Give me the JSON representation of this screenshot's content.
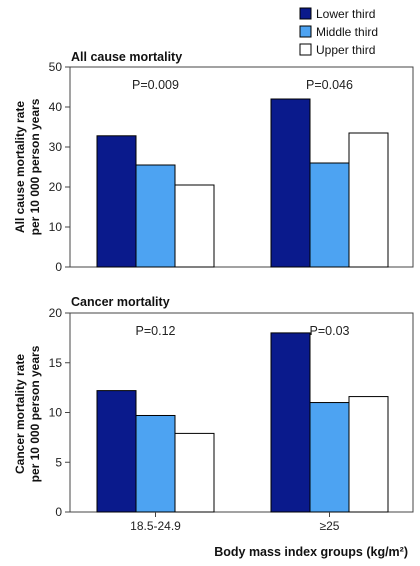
{
  "chart_data": {
    "type": "bar",
    "legend": {
      "placement": "top-right",
      "entries": [
        {
          "name": "Lower third",
          "color": "#0a1a8c"
        },
        {
          "name": "Middle third",
          "color": "#4da3f2"
        },
        {
          "name": "Upper third",
          "color": "#ffffff"
        }
      ]
    },
    "xlabel": "Body mass index groups (kg/m²)",
    "categories": [
      "18.5-24.9",
      "≥25"
    ],
    "panels": [
      {
        "title": "All cause mortality",
        "ylabel_lines": [
          "All cause mortality rate",
          "per 10 000 person years"
        ],
        "ylim": [
          0,
          50
        ],
        "yticks": [
          "0",
          "10",
          "20",
          "30",
          "40",
          "50"
        ],
        "annotations": [
          "P=0.009",
          "P=0.046"
        ],
        "series": [
          {
            "name": "Lower third",
            "values": [
              32.8,
              42.0
            ]
          },
          {
            "name": "Middle third",
            "values": [
              25.5,
              26.0
            ]
          },
          {
            "name": "Upper third",
            "values": [
              20.5,
              33.5
            ]
          }
        ]
      },
      {
        "title": "Cancer mortality",
        "ylabel_lines": [
          "Cancer mortality rate",
          "per 10 000 person years"
        ],
        "ylim": [
          0,
          20
        ],
        "yticks": [
          "0",
          "5",
          "10",
          "15",
          "20"
        ],
        "annotations": [
          "P=0.12",
          "P=0.03"
        ],
        "series": [
          {
            "name": "Lower third",
            "values": [
              12.2,
              18.0
            ]
          },
          {
            "name": "Middle third",
            "values": [
              9.7,
              11.0
            ]
          },
          {
            "name": "Upper third",
            "values": [
              7.9,
              11.6
            ]
          }
        ]
      }
    ]
  }
}
